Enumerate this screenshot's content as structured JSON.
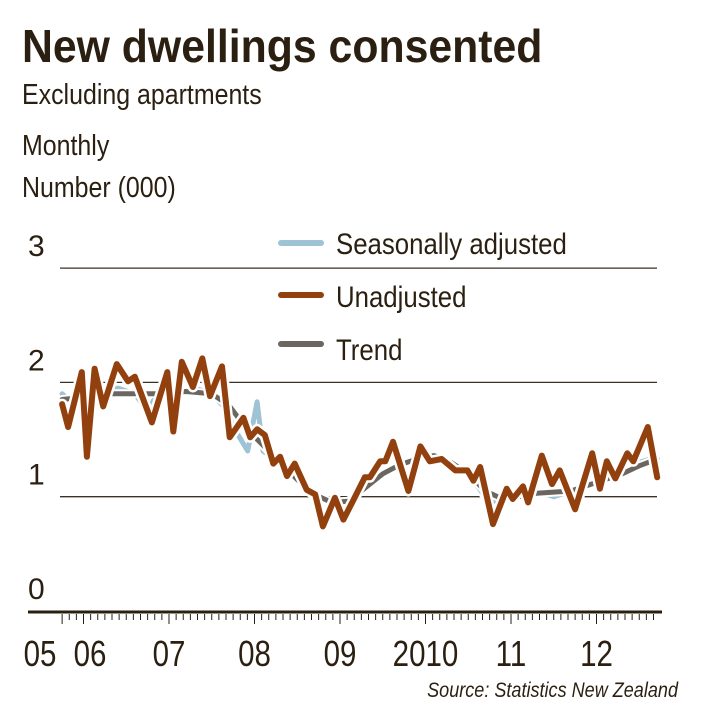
{
  "chart_data": {
    "type": "line",
    "title": "New dwellings consented",
    "subtitle": "Excluding apartments",
    "note1": "Monthly",
    "ylabel": "Number (000)",
    "source": "Source: Statistics New Zealand",
    "ylim": [
      0,
      3
    ],
    "yticks": [
      "0",
      "1",
      "2",
      "3"
    ],
    "xlim": [
      2005.75,
      2012.75
    ],
    "xtick_labels": [
      {
        "year": 2005,
        "label": "05"
      },
      {
        "year": 2006,
        "label": "06"
      },
      {
        "year": 2007,
        "label": "07"
      },
      {
        "year": 2008,
        "label": "08"
      },
      {
        "year": 2009,
        "label": "09"
      },
      {
        "year": 2010,
        "label": "2010"
      },
      {
        "year": 2011,
        "label": "11"
      },
      {
        "year": 2012,
        "label": "12"
      }
    ],
    "grid": true,
    "legend_placement": "top-center",
    "series": [
      {
        "name": "Seasonally adjusted",
        "color": "#9dc3d4",
        "x": [
          2005.75,
          2005.9,
          2006.1,
          2006.4,
          2006.6,
          2006.75,
          2006.9,
          2007.1,
          2007.3,
          2007.5,
          2007.65,
          2007.8,
          2007.92,
          2008.03,
          2008.1,
          2008.3,
          2008.5,
          2008.7,
          2008.9,
          2009.1,
          2009.3,
          2009.5,
          2009.7,
          2009.9,
          2010.0,
          2010.2,
          2010.4,
          2010.6,
          2010.75,
          2010.9,
          2011.1,
          2011.3,
          2011.5,
          2011.7,
          2011.9,
          2012.1,
          2012.3,
          2012.5,
          2012.71
        ],
        "y": [
          1.9,
          1.8,
          1.88,
          1.95,
          1.9,
          1.75,
          1.95,
          1.9,
          1.95,
          1.9,
          1.78,
          1.55,
          1.4,
          1.83,
          1.4,
          1.3,
          1.15,
          1.0,
          0.95,
          0.95,
          1.1,
          1.2,
          1.3,
          1.3,
          1.38,
          1.35,
          1.25,
          1.1,
          0.95,
          0.98,
          1.0,
          1.05,
          1.0,
          1.05,
          1.1,
          1.15,
          1.2,
          1.3,
          1.35
        ]
      },
      {
        "name": "Unadjusted",
        "color": "#93400f",
        "x": [
          2005.75,
          2005.82,
          2005.98,
          2006.04,
          2006.13,
          2006.23,
          2006.39,
          2006.52,
          2006.6,
          2006.8,
          2006.98,
          2007.05,
          2007.15,
          2007.28,
          2007.39,
          2007.48,
          2007.62,
          2007.71,
          2007.87,
          2007.95,
          2008.03,
          2008.12,
          2008.22,
          2008.3,
          2008.38,
          2008.47,
          2008.61,
          2008.71,
          2008.8,
          2008.94,
          2009.04,
          2009.15,
          2009.29,
          2009.35,
          2009.47,
          2009.53,
          2009.62,
          2009.8,
          2009.94,
          2010.05,
          2010.19,
          2010.35,
          2010.49,
          2010.56,
          2010.64,
          2010.79,
          2010.95,
          2011.02,
          2011.14,
          2011.2,
          2011.36,
          2011.48,
          2011.57,
          2011.75,
          2011.95,
          2012.04,
          2012.12,
          2012.22,
          2012.36,
          2012.43,
          2012.6,
          2012.71
        ],
        "y": [
          1.81,
          1.61,
          2.09,
          1.35,
          2.12,
          1.79,
          2.16,
          2.01,
          2.05,
          1.65,
          2.09,
          1.57,
          2.18,
          1.96,
          2.21,
          1.88,
          2.14,
          1.52,
          1.69,
          1.52,
          1.59,
          1.54,
          1.29,
          1.35,
          1.18,
          1.29,
          1.06,
          1.02,
          0.74,
          0.99,
          0.8,
          0.96,
          1.17,
          1.17,
          1.31,
          1.31,
          1.48,
          1.05,
          1.44,
          1.31,
          1.33,
          1.23,
          1.23,
          1.14,
          1.26,
          0.76,
          1.07,
          0.98,
          1.09,
          0.95,
          1.36,
          1.11,
          1.23,
          0.89,
          1.38,
          1.07,
          1.31,
          1.16,
          1.38,
          1.31,
          1.61,
          1.17
        ]
      },
      {
        "name": "Trend",
        "color": "#6b6760",
        "x": [
          2005.75,
          2006.0,
          2006.3,
          2006.6,
          2006.9,
          2007.2,
          2007.5,
          2007.7,
          2007.9,
          2008.1,
          2008.3,
          2008.5,
          2008.7,
          2008.9,
          2009.1,
          2009.3,
          2009.5,
          2009.7,
          2009.9,
          2010.1,
          2010.3,
          2010.5,
          2010.7,
          2010.9,
          2011.1,
          2011.3,
          2011.5,
          2011.7,
          2011.9,
          2012.1,
          2012.3,
          2012.5,
          2012.71
        ],
        "y": [
          1.85,
          1.87,
          1.9,
          1.9,
          1.9,
          1.92,
          1.9,
          1.8,
          1.6,
          1.45,
          1.3,
          1.15,
          1.02,
          0.95,
          0.96,
          1.08,
          1.2,
          1.28,
          1.33,
          1.36,
          1.3,
          1.2,
          1.05,
          0.98,
          1.0,
          1.03,
          1.04,
          1.05,
          1.1,
          1.15,
          1.2,
          1.27,
          1.33
        ]
      }
    ]
  }
}
